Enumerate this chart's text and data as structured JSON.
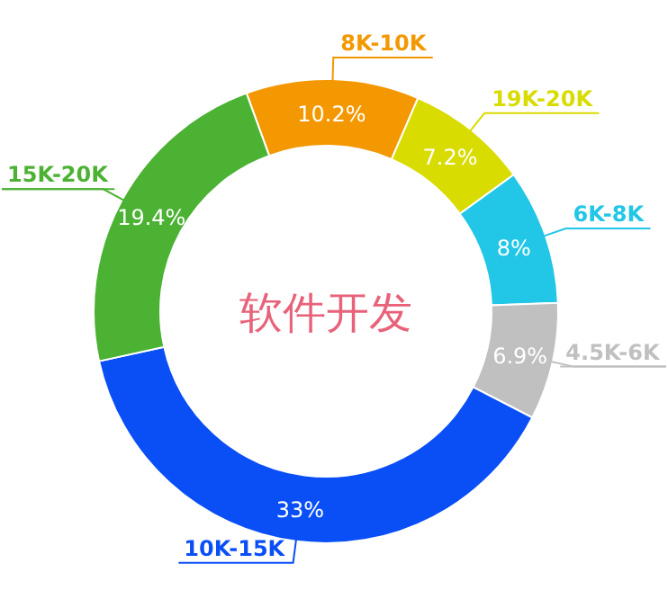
{
  "chart_data": {
    "type": "donut",
    "title": "软件开发",
    "categories": [
      "8K-10K",
      "19K-20K",
      "6K-8K",
      "4.5K-6K",
      "10K-15K",
      "15K-20K"
    ],
    "values": [
      10.2,
      7.2,
      8,
      6.9,
      33,
      19.4
    ],
    "value_labels": [
      "10.2%",
      "7.2%",
      "8%",
      "6.9%",
      "33%",
      "19.4%"
    ],
    "colors": [
      "#f39800",
      "#d9dc00",
      "#22c6e6",
      "#c0c0c0",
      "#0a4ff5",
      "#4cb234"
    ]
  }
}
